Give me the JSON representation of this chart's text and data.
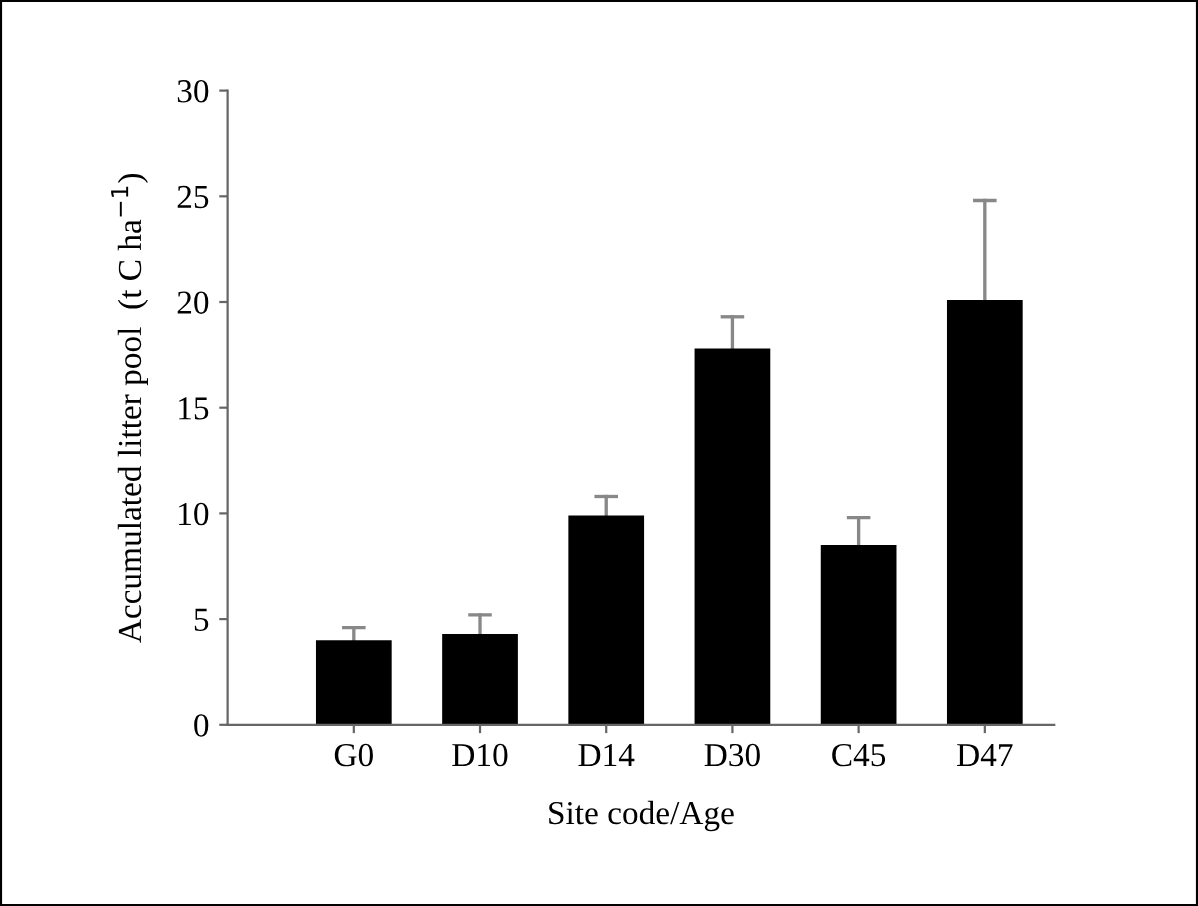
{
  "chart_data": {
    "type": "bar",
    "xlabel": "Site code/Age",
    "ylabel": "Accumulated litter pool  (t C ha$^{−1}$)",
    "categories": [
      "G0",
      "D10",
      "D14",
      "D30",
      "C45",
      "D47"
    ],
    "values": [
      4.0,
      4.3,
      9.9,
      17.8,
      8.5,
      20.1
    ],
    "errors": [
      [
        4.0,
        4.6
      ],
      [
        4.3,
        5.2
      ],
      [
        9.9,
        10.8
      ],
      [
        17.8,
        19.3
      ],
      [
        8.5,
        9.8
      ],
      [
        20.1,
        24.8
      ]
    ],
    "color": "#000000",
    "ylim": [
      0,
      30
    ],
    "yticks": [
      0,
      5,
      10,
      15,
      20,
      25,
      30
    ],
    "grid": false,
    "legend": false
  }
}
